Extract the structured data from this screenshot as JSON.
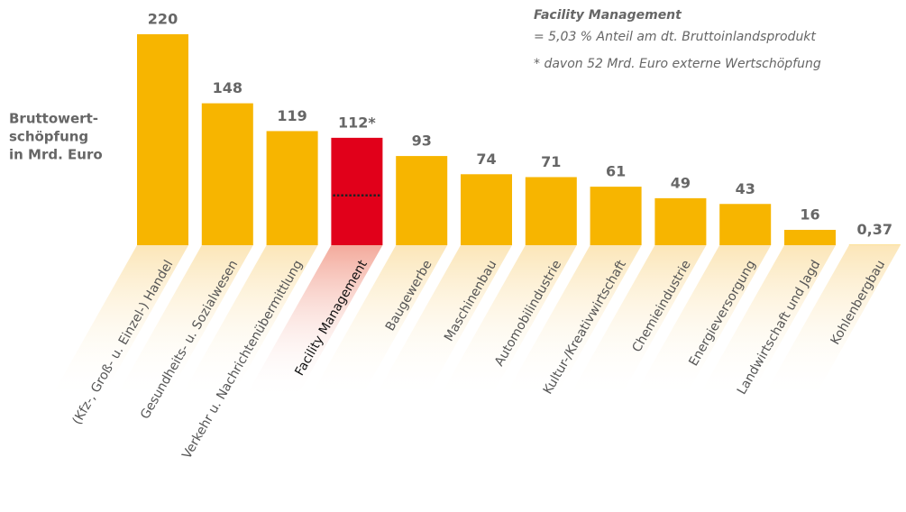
{
  "chart_data": {
    "type": "bar",
    "title": "Facility Management",
    "subtitle": "= 5,03 % Anteil am dt. Bruttoinlandsprodukt",
    "annotation": "* davon 52 Mrd. Euro externe Wertschöpfung",
    "y_label": [
      "Bruttowert-",
      "schöpfung",
      "in Mrd. Euro"
    ],
    "categories": [
      "(Kfz-, Groß- u. Einzel-) Handel",
      "Gesundheits- u. Sozialwesen",
      "Verkehr u. Nachrichtenübermittlung",
      "Facility Management",
      "Baugewerbe",
      "Maschinenbau",
      "Automobilindustrie",
      "Kultur-/Kreativwirtschaft",
      "Chemieindustrie",
      "Energieversorgung",
      "Landwirtschaft und Jagd",
      "Kohlenbergbau"
    ],
    "values": [
      220,
      148,
      119,
      112,
      93,
      74,
      71,
      61,
      49,
      43,
      16,
      0.37
    ],
    "value_labels": [
      "220",
      "148",
      "119",
      "112*",
      "93",
      "74",
      "71",
      "61",
      "49",
      "43",
      "16",
      "0,37"
    ],
    "colors": [
      "#f7b500",
      "#f7b500",
      "#f7b500",
      "#e1001a",
      "#f7b500",
      "#f7b500",
      "#f7b500",
      "#f7b500",
      "#f7b500",
      "#f7b500",
      "#f7b500",
      "#f7b500"
    ],
    "external_share": {
      "category": 3,
      "value": 52
    },
    "ylim": [
      0,
      220
    ]
  }
}
